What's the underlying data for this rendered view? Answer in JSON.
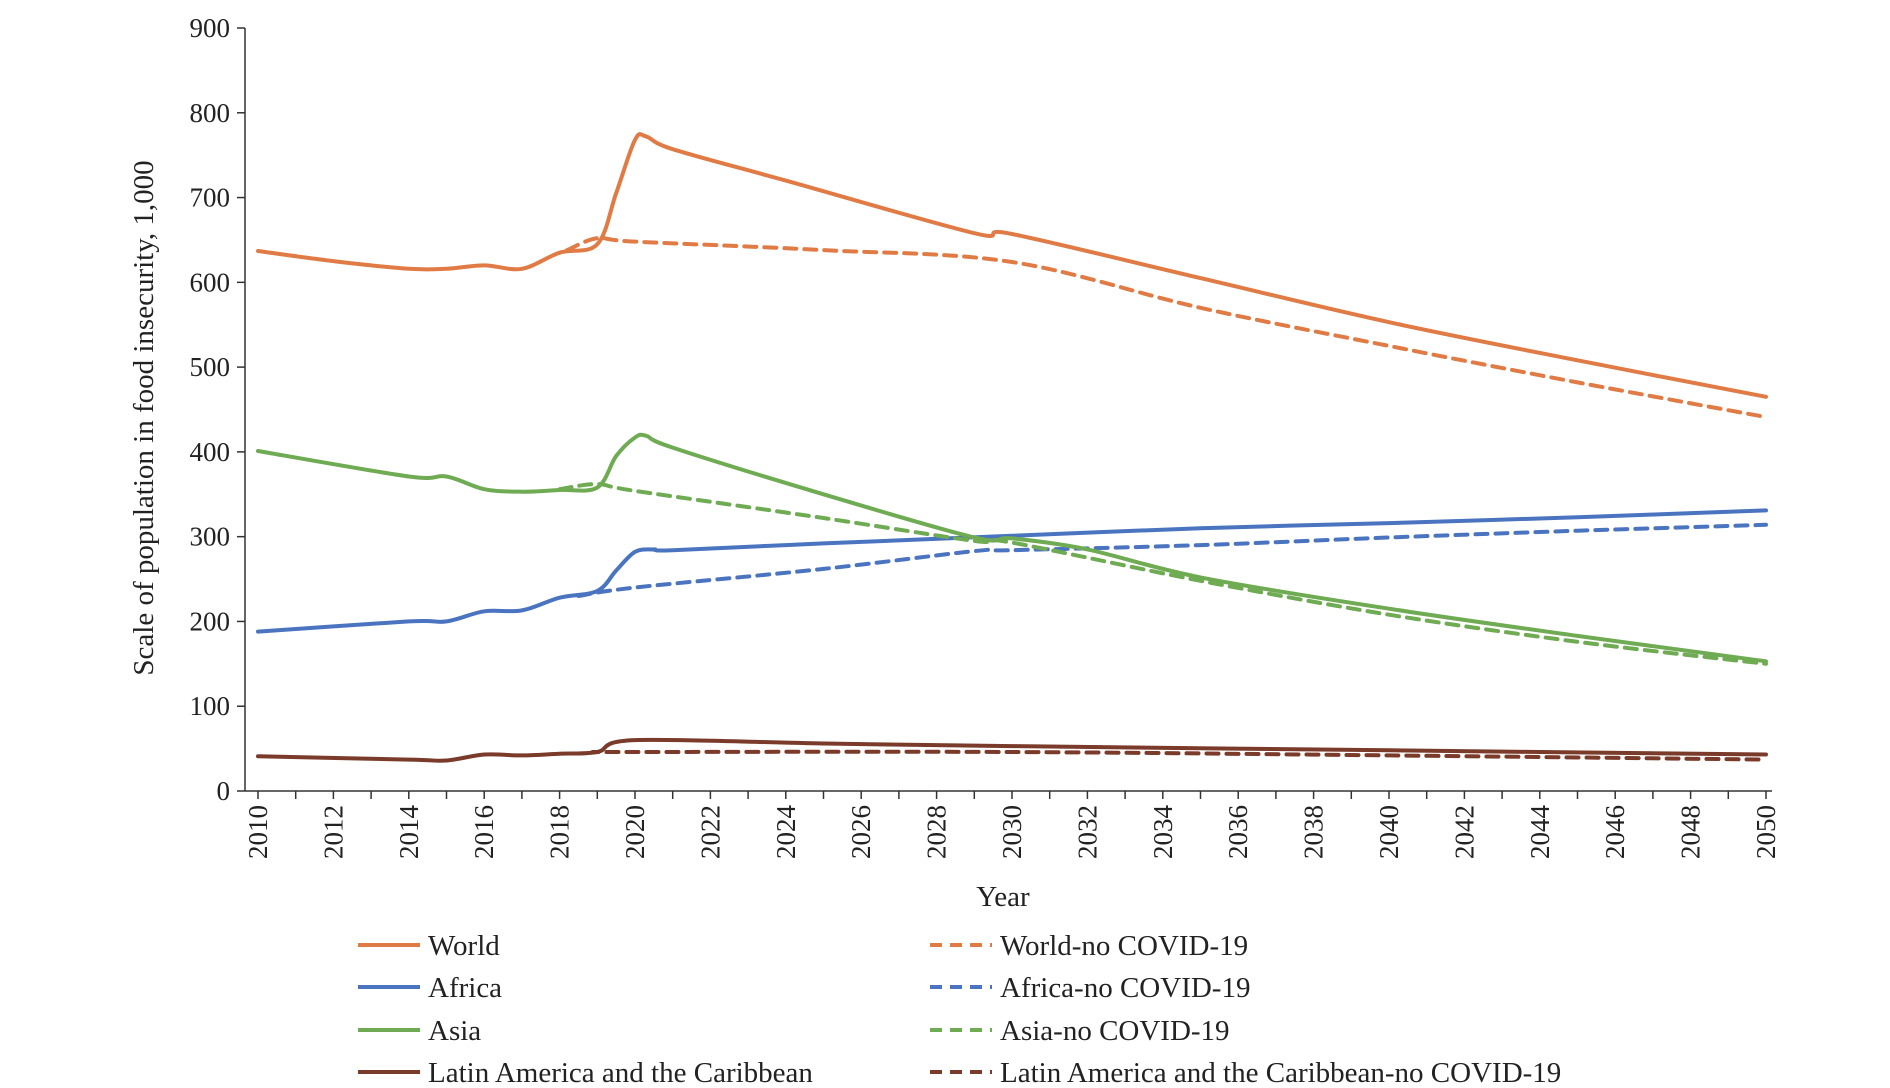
{
  "chart_data": {
    "type": "line",
    "title": "",
    "xlabel": "Year",
    "ylabel": "Scale of population in food insecurity, 1,000",
    "xlim": [
      2010,
      2050
    ],
    "ylim": [
      0,
      900
    ],
    "x_ticks": [
      "2010",
      "2012",
      "2014",
      "2016",
      "2018",
      "2020",
      "2022",
      "2024",
      "2026",
      "2028",
      "2030",
      "2032",
      "2034",
      "2036",
      "2038",
      "2040",
      "2042",
      "2044",
      "2046",
      "2048",
      "2050"
    ],
    "y_ticks": [
      "0",
      "100",
      "200",
      "300",
      "400",
      "500",
      "600",
      "700",
      "800",
      "900"
    ],
    "grid": false,
    "legend_position": "bottom",
    "series": [
      {
        "name": "World",
        "color": "#E07B45",
        "dashed": false,
        "x": [
          2010,
          2012,
          2014,
          2015,
          2016,
          2017,
          2018,
          2019,
          2019.5,
          2020,
          2020.3,
          2021,
          2024,
          2029,
          2030,
          2035,
          2040,
          2045,
          2050
        ],
        "y": [
          637,
          625,
          616,
          616,
          620,
          616,
          635,
          645,
          705,
          768,
          772,
          757,
          720,
          658,
          657,
          605,
          553,
          508,
          465
        ]
      },
      {
        "name": "World-no COVID-19",
        "color": "#E07B45",
        "dashed": true,
        "x": [
          2018.2,
          2019,
          2020,
          2025,
          2030,
          2035,
          2040,
          2045,
          2050
        ],
        "y": [
          638,
          652,
          648,
          638,
          624,
          570,
          525,
          482,
          441
        ]
      },
      {
        "name": "Africa",
        "color": "#4A74C0",
        "dashed": false,
        "x": [
          2010,
          2014,
          2015,
          2016,
          2017,
          2018,
          2019,
          2019.5,
          2020,
          2020.5,
          2021,
          2025,
          2030,
          2035,
          2040,
          2045,
          2050
        ],
        "y": [
          188,
          200,
          200,
          212,
          213,
          228,
          236,
          260,
          282,
          285,
          284,
          292,
          301,
          310,
          316,
          323,
          331
        ]
      },
      {
        "name": "Africa-no COVID-19",
        "color": "#4A74C0",
        "dashed": true,
        "x": [
          2018.5,
          2020,
          2025,
          2029,
          2030,
          2035,
          2040,
          2045,
          2050
        ],
        "y": [
          230,
          240,
          262,
          283,
          284,
          290,
          299,
          307,
          314
        ]
      },
      {
        "name": "Asia",
        "color": "#6FAB53",
        "dashed": false,
        "x": [
          2010,
          2014,
          2015,
          2016,
          2017,
          2018,
          2019,
          2019.5,
          2020,
          2020.3,
          2021,
          2025,
          2029,
          2030,
          2032,
          2035,
          2040,
          2045,
          2050
        ],
        "y": [
          401,
          371,
          371,
          356,
          353,
          355,
          358,
          395,
          417,
          419,
          405,
          350,
          299,
          298,
          285,
          252,
          215,
          183,
          153
        ]
      },
      {
        "name": "Asia-no COVID-19",
        "color": "#6FAB53",
        "dashed": true,
        "x": [
          2018,
          2019,
          2020,
          2025,
          2029,
          2030,
          2035,
          2040,
          2045,
          2050
        ],
        "y": [
          356,
          362,
          354,
          322,
          295,
          293,
          248,
          208,
          176,
          150
        ]
      },
      {
        "name": "Latin America and the Caribbean",
        "color": "#7A3B2A",
        "dashed": false,
        "x": [
          2010,
          2014,
          2015,
          2016,
          2017,
          2018,
          2019,
          2020,
          2025,
          2030,
          2040,
          2050
        ],
        "y": [
          41,
          37,
          36,
          43,
          42,
          44,
          46,
          60,
          56,
          53,
          48,
          43
        ]
      },
      {
        "name": "Latin America and the Caribbean-no COVID-19",
        "color": "#7A3B2A",
        "dashed": true,
        "x": [
          2019,
          2020,
          2030,
          2040,
          2050
        ],
        "y": [
          46,
          46,
          46,
          42,
          37
        ]
      }
    ]
  }
}
